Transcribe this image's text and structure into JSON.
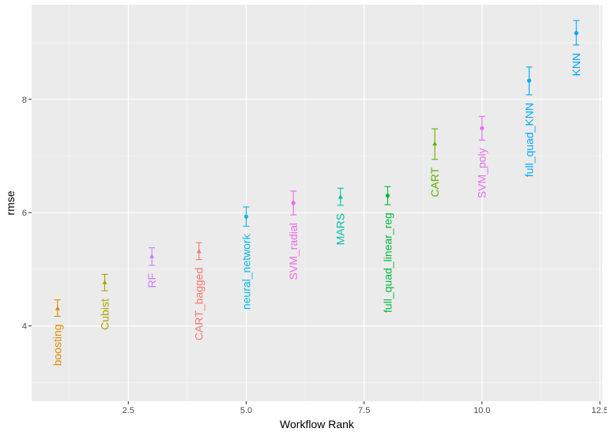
{
  "chart_data": {
    "type": "scatter",
    "title": "",
    "xlabel": "Workflow Rank",
    "ylabel": "rmse",
    "xlim": [
      0.45,
      12.55
    ],
    "ylim": [
      2.67,
      9.67
    ],
    "x_ticks": [
      2.5,
      5.0,
      7.5,
      10.0,
      12.5
    ],
    "x_tick_labels": [
      "2.5",
      "5.0",
      "7.5",
      "10.0",
      "12.5"
    ],
    "y_ticks": [
      4,
      6,
      8
    ],
    "y_tick_labels": [
      "4",
      "6",
      "8"
    ],
    "grid": true,
    "legend": "none",
    "panel_background": "#ebebeb",
    "points": [
      {
        "rank": 1,
        "label": "boosting",
        "rmse": 4.31,
        "lower": 4.17,
        "upper": 4.46,
        "color": "#e08b00",
        "marker": "triangle"
      },
      {
        "rank": 2,
        "label": "Cubist",
        "rmse": 4.77,
        "lower": 4.62,
        "upper": 4.91,
        "color": "#a3a500",
        "marker": "triangle"
      },
      {
        "rank": 3,
        "label": "RF",
        "rmse": 5.23,
        "lower": 5.07,
        "upper": 5.38,
        "color": "#c77cff",
        "marker": "triangle"
      },
      {
        "rank": 4,
        "label": "CART_bagged",
        "rmse": 5.32,
        "lower": 5.17,
        "upper": 5.47,
        "color": "#f8766d",
        "marker": "triangle"
      },
      {
        "rank": 5,
        "label": "neural_network",
        "rmse": 5.93,
        "lower": 5.76,
        "upper": 6.1,
        "color": "#00b8e7",
        "marker": "circle"
      },
      {
        "rank": 6,
        "label": "SVM_radial",
        "rmse": 6.17,
        "lower": 5.96,
        "upper": 6.38,
        "color": "#ed68ed",
        "marker": "circle"
      },
      {
        "rank": 7,
        "label": "MARS",
        "rmse": 6.28,
        "lower": 6.13,
        "upper": 6.43,
        "color": "#00bfa0",
        "marker": "triangle"
      },
      {
        "rank": 8,
        "label": "full_quad_linear_reg",
        "rmse": 6.3,
        "lower": 6.14,
        "upper": 6.46,
        "color": "#00ba38",
        "marker": "circle"
      },
      {
        "rank": 9,
        "label": "CART",
        "rmse": 7.22,
        "lower": 6.94,
        "upper": 7.48,
        "color": "#5bb300",
        "marker": "triangle"
      },
      {
        "rank": 10,
        "label": "SVM_poly",
        "rmse": 7.49,
        "lower": 7.28,
        "upper": 7.7,
        "color": "#e76bf3",
        "marker": "circle"
      },
      {
        "rank": 11,
        "label": "full_quad_KNN",
        "rmse": 8.33,
        "lower": 8.08,
        "upper": 8.57,
        "color": "#00a9ff",
        "marker": "circle"
      },
      {
        "rank": 12,
        "label": "KNN",
        "rmse": 9.17,
        "lower": 8.96,
        "upper": 9.39,
        "color": "#00a5ff",
        "marker": "circle"
      }
    ]
  }
}
